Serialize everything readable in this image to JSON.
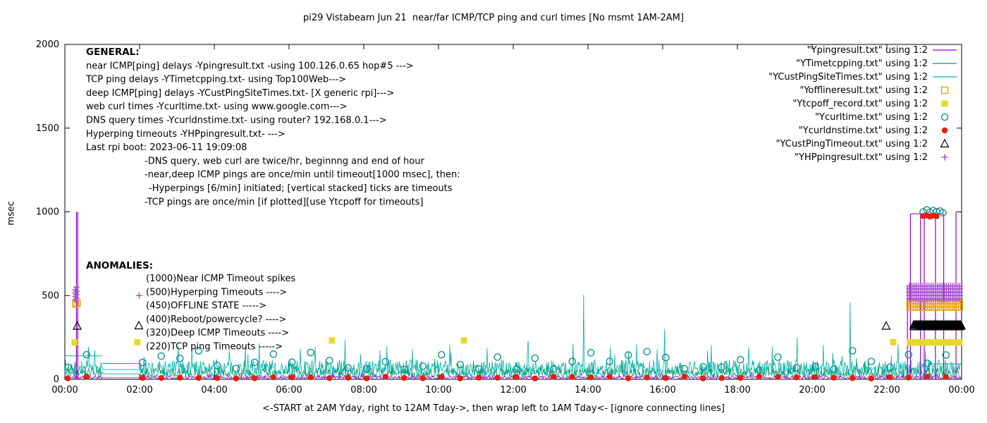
{
  "chart_data": {
    "type": "line",
    "title": "pi29 Vistabeam Jun 21  near/far ICMP/TCP ping and curl times [No msmt 1AM-2AM]",
    "xlabel": "<-START at 2AM Yday, right to 12AM Tday->, then wrap left to 1AM Tday<- [ignore connecting lines]",
    "ylabel": "msec",
    "ylim": [
      0,
      2000
    ],
    "xlim_hours": [
      0,
      24
    ],
    "grid": false,
    "legend_position": "top-right",
    "no_measurement_gap_hours": [
      1,
      2
    ],
    "y_ticks": [
      0,
      500,
      1000,
      1500,
      2000
    ],
    "x_tick_hours": [
      0,
      2,
      4,
      6,
      8,
      10,
      12,
      14,
      16,
      18,
      20,
      22,
      24
    ],
    "x_tick_labels": [
      "00:00",
      "02:00",
      "04:00",
      "06:00",
      "08:00",
      "10:00",
      "12:00",
      "14:00",
      "16:00",
      "18:00",
      "20:00",
      "22:00",
      "00:00"
    ],
    "legend": [
      {
        "label": "\"Ypingresult.txt\" using 1:2",
        "sample": "line",
        "color": "#9400D3"
      },
      {
        "label": "\"YTimetcpping.txt\" using 1:2",
        "sample": "line",
        "color": "#009E73"
      },
      {
        "label": "\"YCustPingSiteTimes.txt\" using 1:2",
        "sample": "line",
        "color": "#00AFA5"
      },
      {
        "label": "\"Yofflineresult.txt\" using 1:2",
        "sample": "square-open",
        "color": "#E69F00"
      },
      {
        "label": "\"Ytcpoff_record.txt\" using 1:2",
        "sample": "square-fill",
        "color": "#E6D82E"
      },
      {
        "label": "\"Ycurltime.txt\" using 1:2",
        "sample": "circle-open",
        "color": "#008B8B"
      },
      {
        "label": "\"Ycurldnstime.txt\" using 1:2",
        "sample": "circle-fill",
        "color": "#E51E10"
      },
      {
        "label": "\"YCustPingTimeout.txt\" using 1:2",
        "sample": "triangle-open",
        "color": "#000000"
      },
      {
        "label": "\"YHPpingresult.txt\" using 1:2",
        "sample": "plus",
        "color": "#A64ACF"
      }
    ],
    "line_series": [
      {
        "name": "YCustPingSiteTimes.txt",
        "color": "#00AFA5",
        "seed": 7,
        "base_ms": [
          28,
          118
        ],
        "gap_value": 58,
        "spikes": [
          [
            3.4,
            180
          ],
          [
            4.4,
            172
          ],
          [
            5.2,
            215
          ],
          [
            6.3,
            182
          ],
          [
            7.5,
            238
          ],
          [
            8.62,
            196
          ],
          [
            9.3,
            176
          ],
          [
            10.3,
            210
          ],
          [
            11.3,
            186
          ],
          [
            12.4,
            230
          ],
          [
            13.88,
            505
          ],
          [
            14.6,
            192
          ],
          [
            15.3,
            212
          ],
          [
            16.05,
            300
          ],
          [
            17.3,
            206
          ],
          [
            18.3,
            192
          ],
          [
            19.6,
            250
          ],
          [
            20.3,
            206
          ],
          [
            21.02,
            460
          ],
          [
            22.3,
            212
          ]
        ],
        "hlines": [
          [
            0.0,
            1.0,
            140
          ],
          [
            1.0,
            2.0,
            95
          ],
          [
            23.1,
            23.96,
            92
          ]
        ],
        "vlines": []
      },
      {
        "name": "YTimetcpping.txt",
        "color": "#009E73",
        "seed": 3,
        "base_ms": [
          12,
          66
        ],
        "gap_value": 32,
        "spikes": [
          [
            4.8,
            112
          ],
          [
            9.9,
            122
          ],
          [
            14.9,
            116
          ],
          [
            18.6,
            106
          ],
          [
            21.5,
            112
          ]
        ],
        "hlines": [],
        "vlines": []
      },
      {
        "name": "Ypingresult.txt",
        "color": "#9400D3",
        "seed": 11,
        "base_ms": [
          4,
          20
        ],
        "gap_value": 9,
        "spikes": [],
        "hlines": [
          [
            22.63,
            23.52,
            988
          ]
        ],
        "vlines": [
          [
            0.31,
            0,
            1000
          ],
          [
            0.345,
            0,
            1000
          ],
          [
            22.55,
            0,
            560
          ],
          [
            22.63,
            0,
            988
          ],
          [
            22.9,
            0,
            988
          ],
          [
            23.0,
            0,
            988
          ],
          [
            23.3,
            0,
            988
          ],
          [
            23.52,
            0,
            988
          ],
          [
            23.85,
            0,
            1000
          ]
        ]
      }
    ],
    "marker_series": [
      {
        "name": "Yofflineresult.txt",
        "shape": "square-open",
        "color": "#E69F00",
        "points": [
          [
            0.29,
            450
          ],
          [
            0.33,
            455
          ]
        ],
        "bands": [
          {
            "h1": 22.62,
            "h2": 23.96,
            "step": 0.055,
            "vs": [
              432,
              452
            ]
          }
        ]
      },
      {
        "name": "Ytcpoff_record.txt",
        "shape": "square-fill",
        "color": "#E6D82E",
        "points": [
          [
            0.26,
            220
          ],
          [
            1.94,
            222
          ],
          [
            7.15,
            232
          ],
          [
            10.68,
            232
          ],
          [
            22.17,
            222
          ]
        ],
        "bands": [
          {
            "h1": 22.62,
            "h2": 23.96,
            "step": 0.06,
            "vs": [
              220
            ]
          }
        ]
      },
      {
        "name": "YHPpingresult.txt",
        "shape": "plus",
        "color": "#A64ACF",
        "points": [
          [
            0.28,
            475
          ],
          [
            0.28,
            495
          ],
          [
            0.28,
            515
          ],
          [
            0.28,
            535
          ],
          [
            0.31,
            485
          ],
          [
            0.31,
            505
          ],
          [
            0.31,
            525
          ],
          [
            0.31,
            550
          ],
          [
            1.99,
            500
          ]
        ],
        "bands": [
          {
            "h1": 22.6,
            "h2": 23.98,
            "step": 0.05,
            "vs": [
              480,
              500,
              520,
              540,
              557
            ]
          }
        ]
      },
      {
        "name": "YCustPingTimeout.txt",
        "shape": "triangle-open",
        "color": "#000000",
        "points": [
          [
            0.33,
            318
          ],
          [
            1.98,
            320
          ],
          [
            21.98,
            318
          ],
          [
            23.99,
            320
          ]
        ],
        "bands": [
          {
            "h1": 22.72,
            "h2": 23.96,
            "step": 0.04,
            "vs": [
              315,
              325
            ]
          }
        ]
      },
      {
        "name": "Ycurltime.txt",
        "shape": "circle-open",
        "color": "#008B8B",
        "points": [
          [
            22.97,
            1000
          ],
          [
            23.07,
            1012
          ],
          [
            23.15,
            997
          ],
          [
            23.24,
            1008
          ],
          [
            23.33,
            1000
          ],
          [
            23.42,
            1005
          ],
          [
            23.5,
            995
          ]
        ],
        "periodic": {
          "start": 0.08,
          "end": 23.95,
          "step": 0.5,
          "y_min": 55,
          "y_max": 175,
          "skip": [
            1,
            2
          ],
          "seed": 101
        }
      },
      {
        "name": "Ycurldnstime.txt",
        "shape": "circle-fill",
        "color": "#E51E10",
        "points": [
          [
            22.97,
            975
          ],
          [
            23.06,
            978
          ],
          [
            23.15,
            972
          ],
          [
            23.24,
            976
          ],
          [
            23.33,
            974
          ]
        ],
        "periodic": {
          "start": 0.08,
          "end": 23.95,
          "step": 0.5,
          "y_min": 4,
          "y_max": 16,
          "skip": [
            1,
            2
          ],
          "seed": 202
        }
      }
    ],
    "annotations": {
      "general": {
        "header": "GENERAL:",
        "lines": [
          {
            "text": "near ICMP[ping] delays -Ypingresult.txt -using 100.126.0.65 hop#5 --->",
            "ind": 0
          },
          {
            "text": "TCP ping delays -YTimetcpping.txt- using Top100Web--->",
            "ind": 0
          },
          {
            "text": "deep ICMP[ping] delays -YCustPingSiteTimes.txt- [X generic rpi]--->",
            "ind": 0
          },
          {
            "text": "web curl times -Ycurltime.txt- using www.google.com--->",
            "ind": 0
          },
          {
            "text": "DNS query times -Ycurldnstime.txt- using router? 192.168.0.1--->",
            "ind": 0
          },
          {
            "text": "Hyperping timeouts -YHPpingresult.txt- --->",
            "ind": 0
          },
          {
            "text": "Last rpi boot: 2023-06-11 19:09:08",
            "ind": 0
          },
          {
            "text": "-DNS query, web curl are twice/hr, beginnng and end of hour",
            "ind": 1
          },
          {
            "text": "-near,deep ICMP pings are once/min until timeout[1000 msec], then:",
            "ind": 1
          },
          {
            "text": "-Hyperpings [6/min] initiated; [vertical stacked] ticks are timeouts",
            "ind": 2
          },
          {
            "text": "-TCP pings are once/min [if plotted][use Ytcpoff for timeouts]",
            "ind": 1
          }
        ]
      },
      "anomalies": {
        "header": "ANOMALIES:",
        "lines": [
          "(1000)Near ICMP Timeout spikes",
          "(500)Hyperping Timeouts ---->",
          "(450)OFFLINE STATE ----->",
          "(400)Reboot/powercycle? ---->",
          "(320)Deep ICMP Timeouts ---->",
          "(220)TCP ping Timeouts ----->"
        ]
      }
    }
  }
}
